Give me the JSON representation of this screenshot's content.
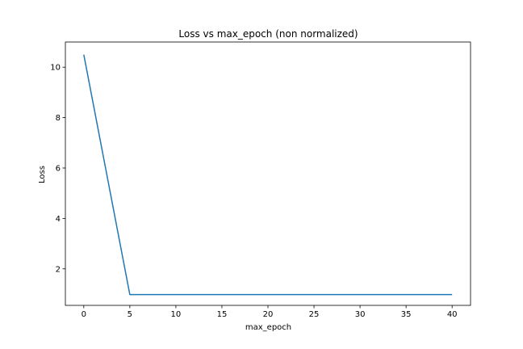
{
  "chart_data": {
    "type": "line",
    "title": "Loss vs max_epoch (non normalized)",
    "xlabel": "max_epoch",
    "ylabel": "Loss",
    "xlim": [
      -2,
      42
    ],
    "ylim": [
      0.55,
      11
    ],
    "xticks": [
      0,
      5,
      10,
      15,
      20,
      25,
      30,
      35,
      40
    ],
    "yticks": [
      2,
      4,
      6,
      8,
      10
    ],
    "grid": false,
    "series": [
      {
        "color": "#1f77b4",
        "x": [
          0,
          5,
          10,
          15,
          20,
          25,
          30,
          35,
          40
        ],
        "y": [
          10.5,
          0.98,
          0.98,
          0.98,
          0.98,
          0.98,
          0.98,
          0.98,
          0.98
        ]
      }
    ]
  }
}
